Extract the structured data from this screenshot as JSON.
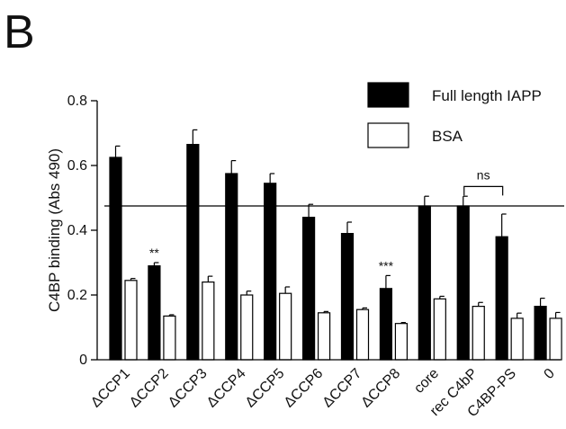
{
  "panel_label": "B",
  "chart_data": {
    "type": "bar",
    "xlabel": "",
    "ylabel": "C4BP binding (Abs 490)",
    "ylim": [
      0,
      0.8
    ],
    "yticks": [
      "0",
      "0.2",
      "0.4",
      "0.6",
      "0.8"
    ],
    "ytick_values": [
      0,
      0.2,
      0.4,
      0.6,
      0.8
    ],
    "categories": [
      "ΔCCP1",
      "ΔCCP2",
      "ΔCCP3",
      "ΔCCP4",
      "ΔCCP5",
      "ΔCCP6",
      "ΔCCP7",
      "ΔCCP8",
      "core",
      "rec C4bP",
      "C4BP-PS",
      "0"
    ],
    "series": [
      {
        "name": "Full length IAPP",
        "color": "#000000",
        "values": [
          0.625,
          0.29,
          0.665,
          0.575,
          0.545,
          0.44,
          0.39,
          0.22,
          0.475,
          0.475,
          0.38,
          0.165
        ],
        "errors": [
          0.035,
          0.01,
          0.045,
          0.04,
          0.03,
          0.04,
          0.035,
          0.04,
          0.03,
          0.03,
          0.07,
          0.025
        ]
      },
      {
        "name": "BSA",
        "color": "#ffffff",
        "values": [
          0.245,
          0.135,
          0.24,
          0.2,
          0.205,
          0.145,
          0.155,
          0.112,
          0.188,
          0.165,
          0.128,
          0.128
        ],
        "errors": [
          0.006,
          0.004,
          0.018,
          0.012,
          0.02,
          0.004,
          0.005,
          0.003,
          0.008,
          0.012,
          0.016,
          0.018
        ]
      }
    ],
    "reference_line": 0.475,
    "annotations": [
      {
        "text": "**",
        "category_index": 1
      },
      {
        "text": "***",
        "category_index": 7
      },
      {
        "text": "ns",
        "bracket": [
          9,
          10
        ]
      }
    ],
    "legend_position": "top-right",
    "grid": false
  }
}
